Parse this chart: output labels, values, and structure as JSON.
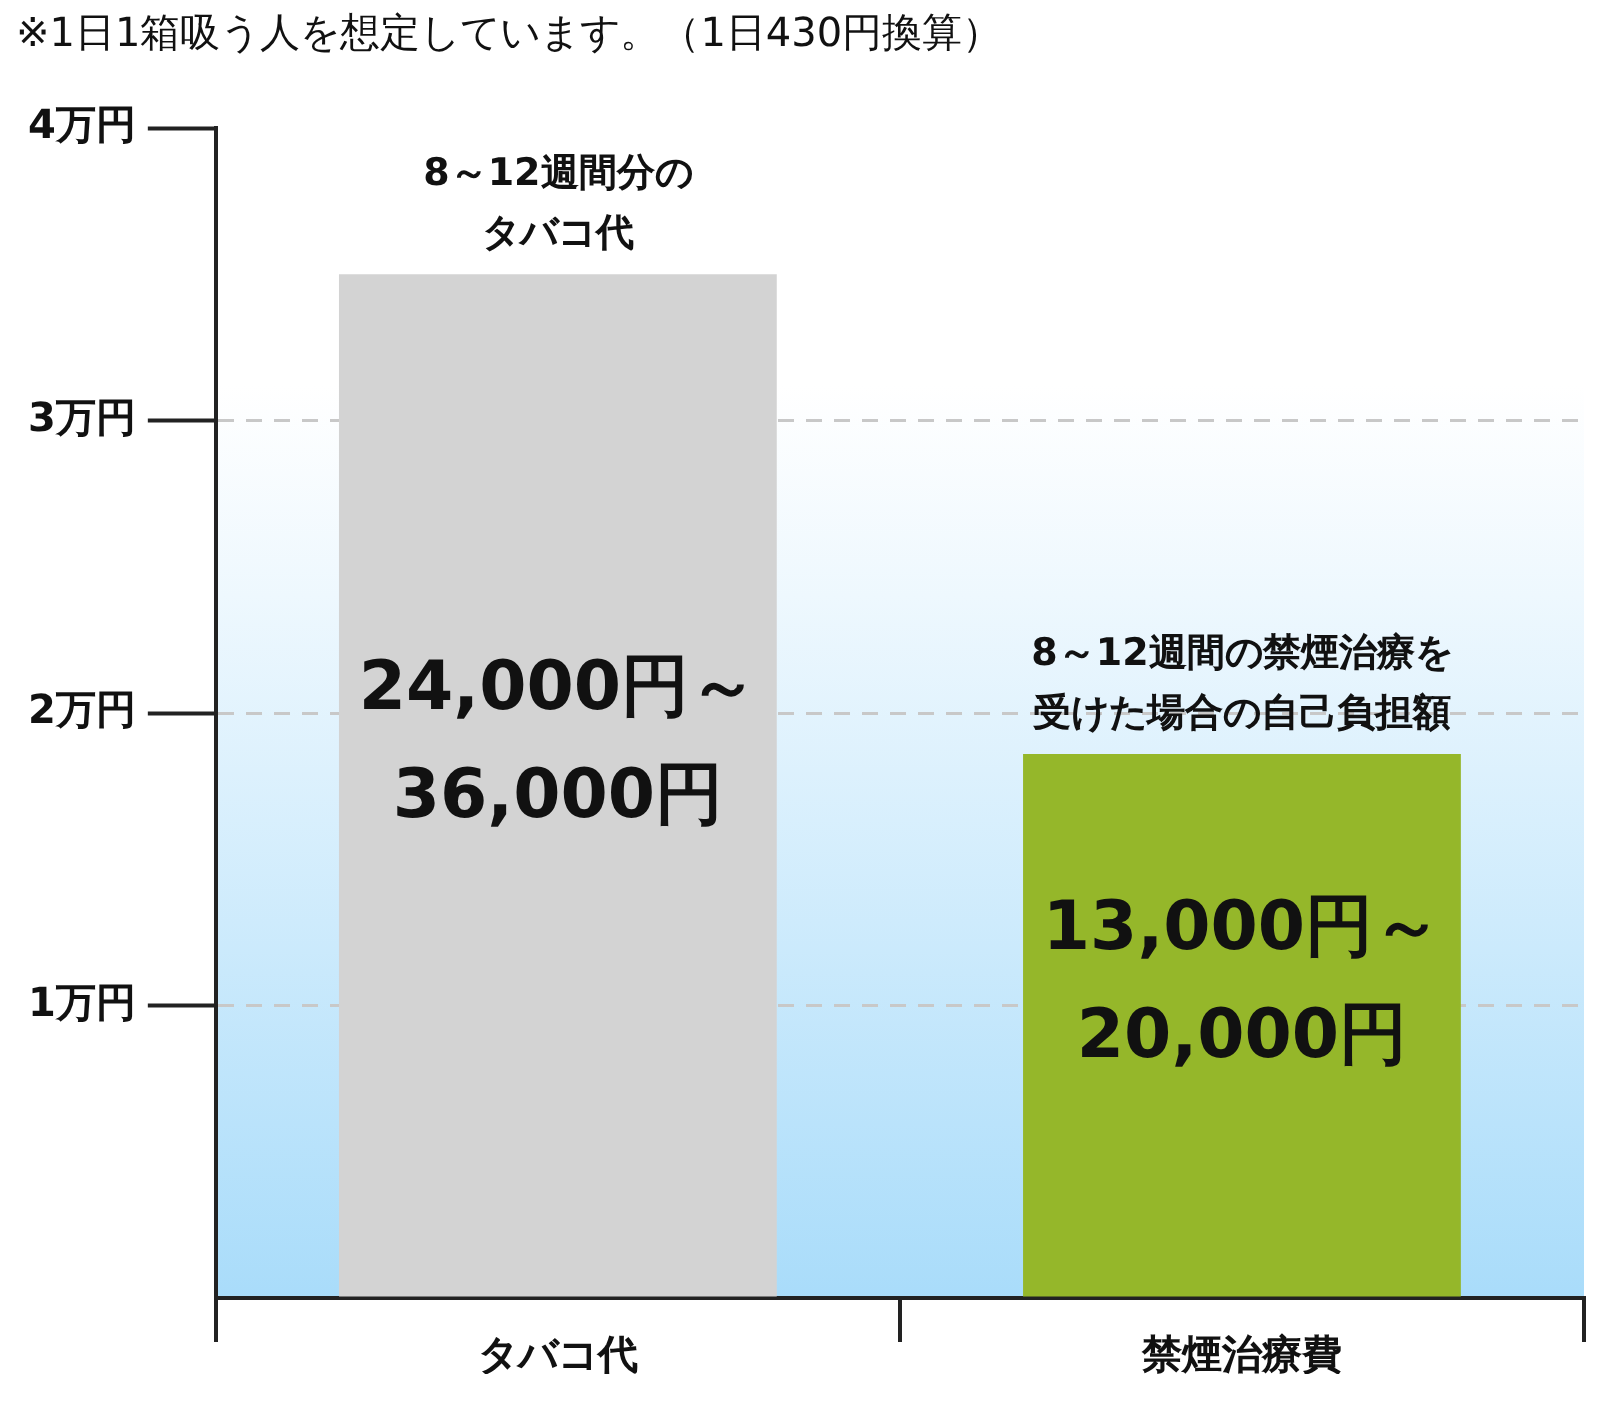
{
  "chart_data": {
    "type": "bar",
    "categories": [
      "タバコ代",
      "禁煙治療費"
    ],
    "values": [
      3.5,
      1.86
    ],
    "colors": [
      "#d3d3d3",
      "#95b72a"
    ],
    "ylim": [
      0,
      4
    ],
    "yticks": [
      {
        "value": 0,
        "label": null
      },
      {
        "value": 1,
        "label": "1万円"
      },
      {
        "value": 2,
        "label": "2万円"
      },
      {
        "value": 3,
        "label": "3万円"
      },
      {
        "value": 4,
        "label": "4万円"
      }
    ],
    "grid": "y",
    "legend": false,
    "annotations": [
      "※1日1箱吸う人を想定しています。（1日430円換算）",
      {
        "text": "8～12週間分の",
        "x": "タバコ代",
        "y": 3.5
      },
      {
        "text": "タバコ代",
        "x": "タバコ代",
        "y": 3.5
      },
      "24,000円～36,000円",
      "13,000円～20,000円",
      {
        "text": "8～12週間の禁煙治療を",
        "x": "禁煙治療費",
        "y": 1.86
      },
      {
        "text": "受けた場合の自己負担額",
        "x": "禁煙治療費",
        "y": 1.86
      }
    ]
  }
}
